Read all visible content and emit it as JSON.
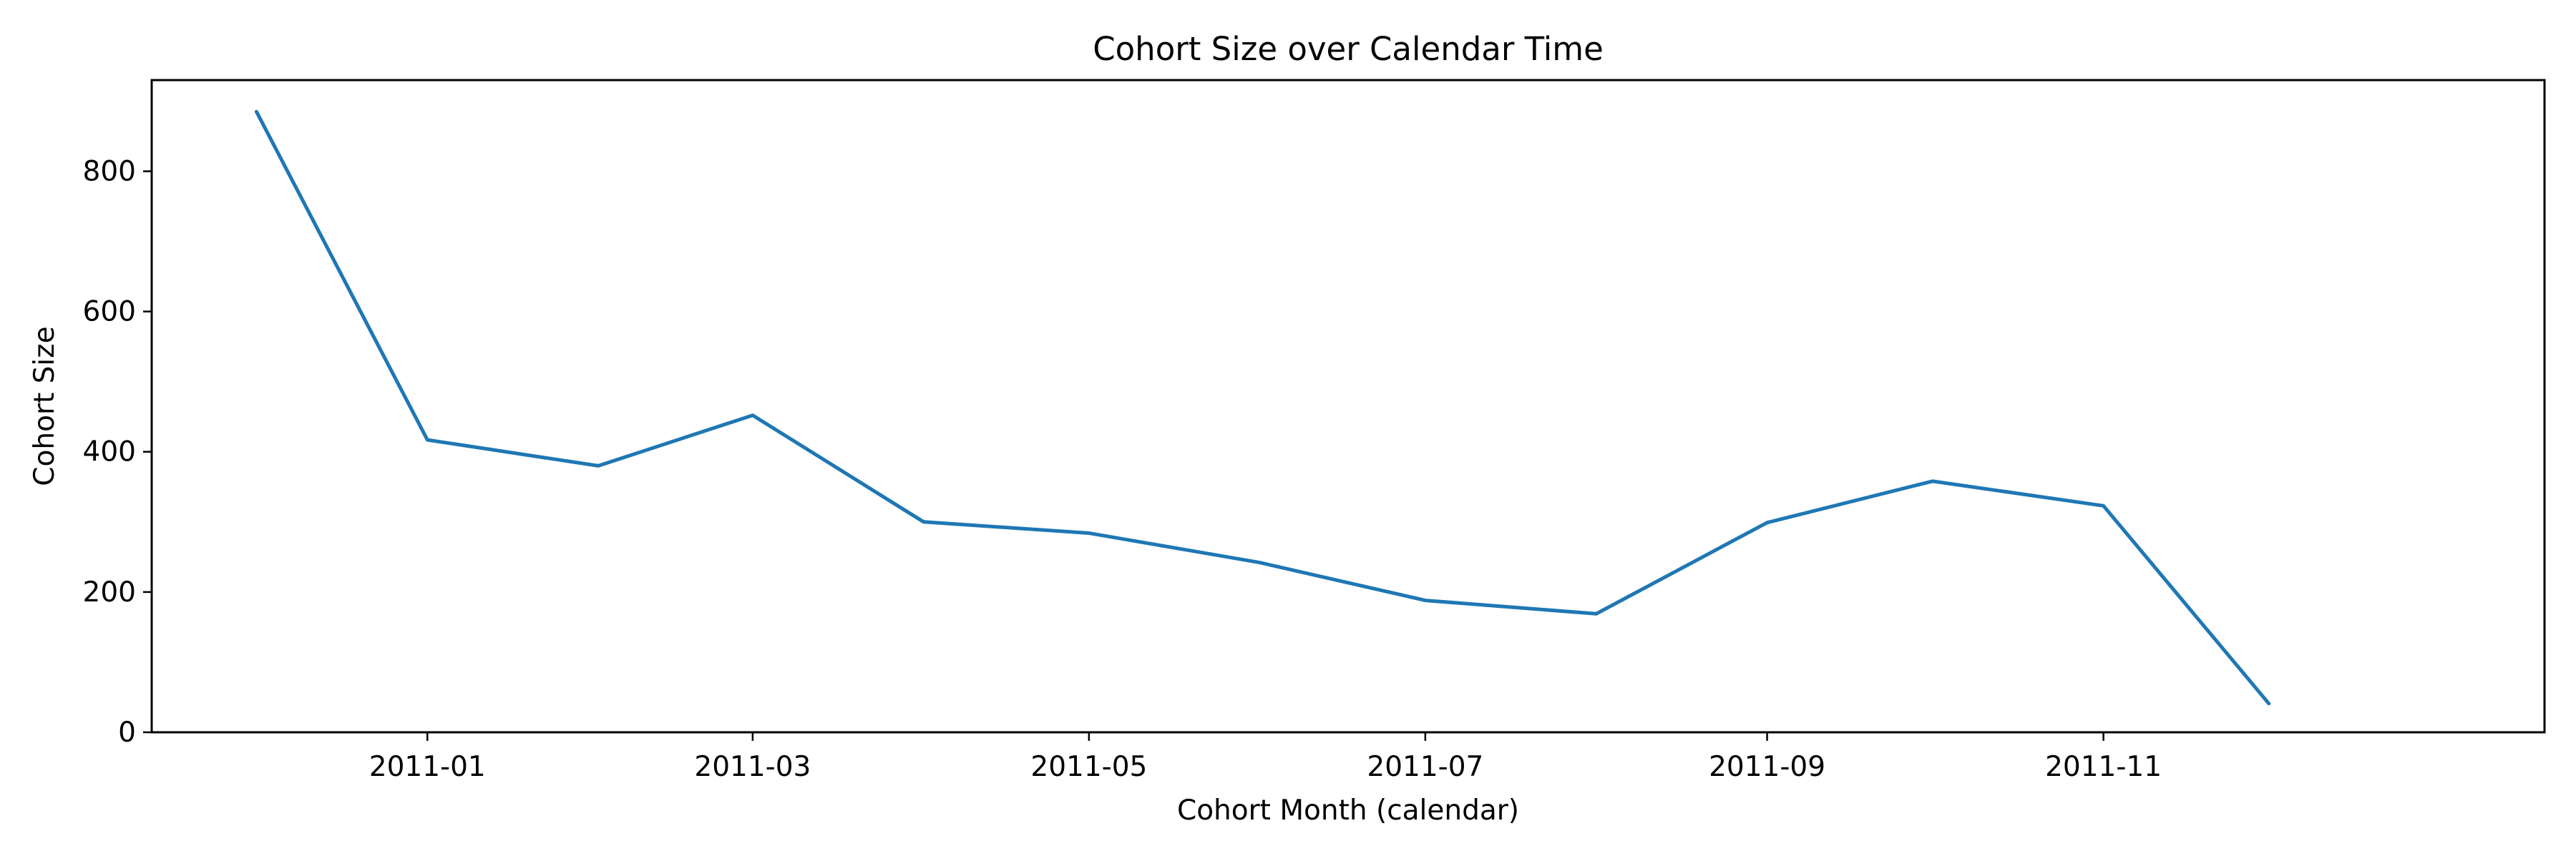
{
  "chart_data": {
    "type": "line",
    "title": "Cohort Size over Calendar Time",
    "xlabel": "Cohort Month (calendar)",
    "ylabel": "Cohort Size",
    "x": [
      "2010-12",
      "2011-01",
      "2011-02",
      "2011-03",
      "2011-04",
      "2011-05",
      "2011-06",
      "2011-07",
      "2011-08",
      "2011-09",
      "2011-10",
      "2011-11",
      "2011-12"
    ],
    "series": [
      {
        "values": [
          885,
          417,
          380,
          452,
          300,
          284,
          242,
          188,
          169,
          299,
          358,
          323,
          41
        ]
      }
    ],
    "x_ticks": [
      "2011-01",
      "2011-03",
      "2011-05",
      "2011-07",
      "2011-09",
      "2011-11"
    ],
    "y_ticks": [
      0,
      200,
      400,
      600,
      800
    ],
    "ylim": [
      0,
      930
    ],
    "xlim": [
      "2010-11-12",
      "2012-01-20"
    ],
    "grid": false,
    "colors": {
      "line": "#1f77b4",
      "axes": "#000000",
      "background": "#ffffff"
    }
  }
}
